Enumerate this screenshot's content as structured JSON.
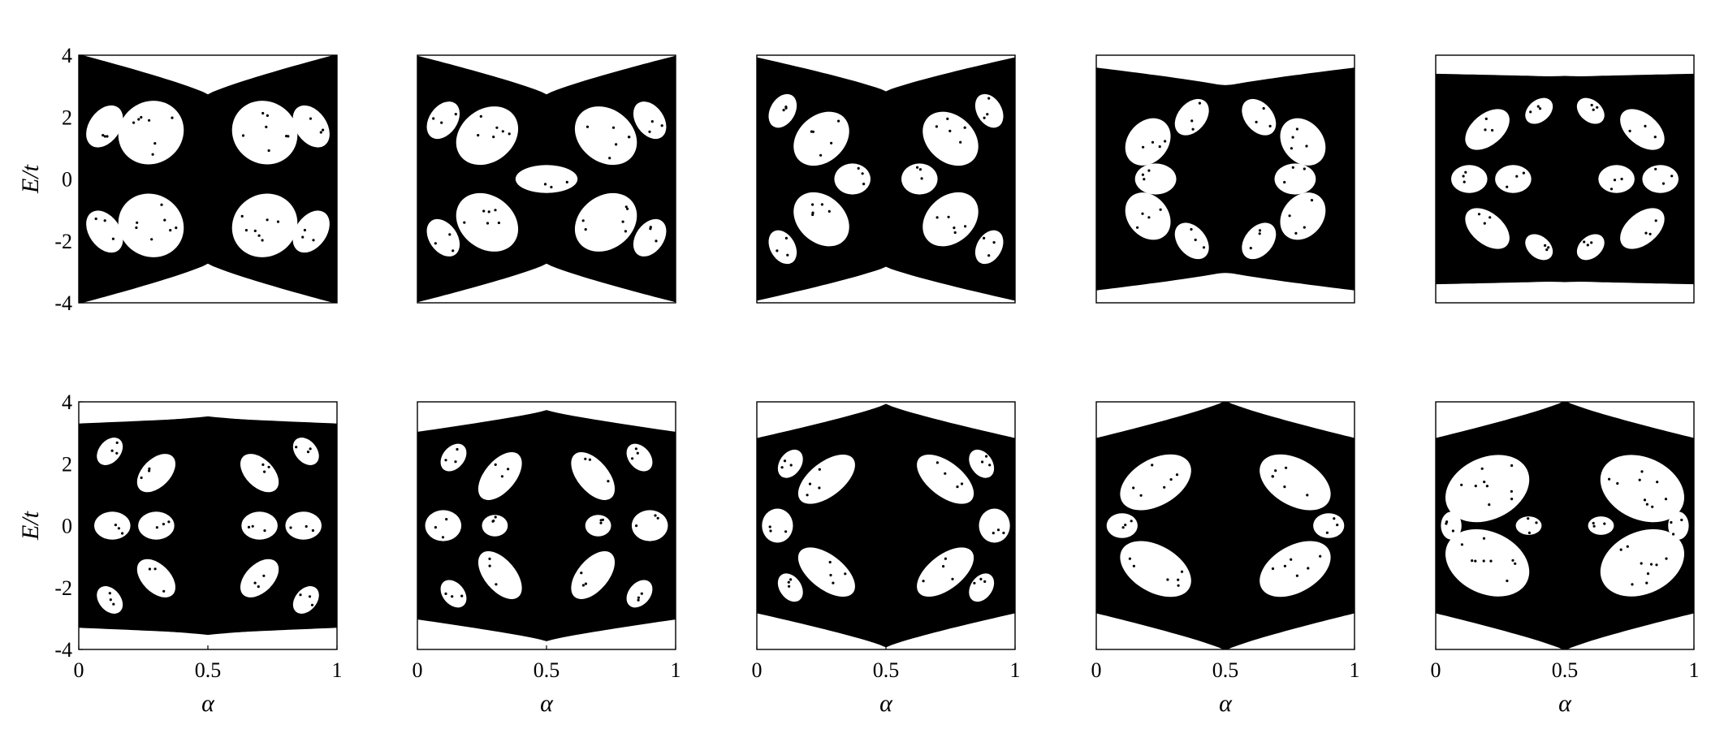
{
  "chart_data": [
    {
      "type": "scatter",
      "row": 0,
      "col": 0,
      "xlim": [
        0,
        1
      ],
      "ylim": [
        -4,
        4
      ],
      "xticks": [],
      "yticks": [
        "-4",
        "-2",
        "0",
        "2",
        "4"
      ],
      "xlabel": "",
      "ylabel": "E/t",
      "ylabel_main": "E",
      "ylabel_sep": "/",
      "ylabel_sub": "t",
      "band_top": [
        4.0,
        2.7,
        4.0
      ],
      "band_bottom": [
        -4.0,
        -2.7,
        -4.0
      ],
      "edge_max": [
        4.0,
        2.7,
        4.0
      ],
      "gaps": [
        {
          "x": 0.28,
          "y": 1.5,
          "w": 0.13,
          "h": 1.0,
          "r": -35
        },
        {
          "x": 0.72,
          "y": 1.5,
          "w": 0.13,
          "h": 1.0,
          "r": 35
        },
        {
          "x": 0.28,
          "y": -1.5,
          "w": 0.13,
          "h": 1.0,
          "r": 35
        },
        {
          "x": 0.72,
          "y": -1.5,
          "w": 0.13,
          "h": 1.0,
          "r": -35
        },
        {
          "x": 0.1,
          "y": 1.7,
          "w": 0.09,
          "h": 0.5,
          "r": -55
        },
        {
          "x": 0.9,
          "y": 1.7,
          "w": 0.09,
          "h": 0.5,
          "r": 55
        },
        {
          "x": 0.1,
          "y": -1.7,
          "w": 0.09,
          "h": 0.5,
          "r": 55
        },
        {
          "x": 0.9,
          "y": -1.7,
          "w": 0.09,
          "h": 0.5,
          "r": -55
        }
      ]
    },
    {
      "type": "scatter",
      "row": 0,
      "col": 1,
      "xlim": [
        0,
        1
      ],
      "ylim": [
        -4,
        4
      ],
      "xticks": [],
      "yticks": [],
      "xlabel": "",
      "ylabel": "",
      "band_top": [
        3.95,
        2.7,
        3.95
      ],
      "band_bottom": [
        -3.95,
        -2.7,
        -3.95
      ],
      "edge_max": [
        3.95,
        2.7,
        3.95
      ],
      "gaps": [
        {
          "x": 0.27,
          "y": 1.4,
          "w": 0.13,
          "h": 0.85,
          "r": -38
        },
        {
          "x": 0.73,
          "y": 1.4,
          "w": 0.13,
          "h": 0.85,
          "r": 38
        },
        {
          "x": 0.27,
          "y": -1.4,
          "w": 0.13,
          "h": 0.85,
          "r": 38
        },
        {
          "x": 0.73,
          "y": -1.4,
          "w": 0.13,
          "h": 0.85,
          "r": -38
        },
        {
          "x": 0.5,
          "y": 0.0,
          "w": 0.12,
          "h": 0.45,
          "r": 0
        },
        {
          "x": 0.1,
          "y": 1.9,
          "w": 0.08,
          "h": 0.45,
          "r": -55
        },
        {
          "x": 0.9,
          "y": 1.9,
          "w": 0.08,
          "h": 0.45,
          "r": 55
        },
        {
          "x": 0.1,
          "y": -1.9,
          "w": 0.08,
          "h": 0.45,
          "r": 55
        },
        {
          "x": 0.9,
          "y": -1.9,
          "w": 0.08,
          "h": 0.45,
          "r": -55
        }
      ]
    },
    {
      "type": "scatter",
      "row": 0,
      "col": 2,
      "xlim": [
        0,
        1
      ],
      "ylim": [
        -4,
        4
      ],
      "xticks": [],
      "yticks": [],
      "xlabel": "",
      "ylabel": "",
      "band_top": [
        3.9,
        2.8,
        3.9
      ],
      "band_bottom": [
        -3.9,
        -2.8,
        -3.9
      ],
      "edge_max": [
        3.9,
        2.8,
        3.9
      ],
      "gaps": [
        {
          "x": 0.25,
          "y": 1.3,
          "w": 0.12,
          "h": 0.75,
          "r": -42
        },
        {
          "x": 0.75,
          "y": 1.3,
          "w": 0.12,
          "h": 0.75,
          "r": 42
        },
        {
          "x": 0.25,
          "y": -1.3,
          "w": 0.12,
          "h": 0.75,
          "r": 42
        },
        {
          "x": 0.75,
          "y": -1.3,
          "w": 0.12,
          "h": 0.75,
          "r": -42
        },
        {
          "x": 0.37,
          "y": 0.0,
          "w": 0.07,
          "h": 0.5,
          "r": 0
        },
        {
          "x": 0.63,
          "y": 0.0,
          "w": 0.07,
          "h": 0.5,
          "r": 0
        },
        {
          "x": 0.1,
          "y": 2.2,
          "w": 0.07,
          "h": 0.4,
          "r": -60
        },
        {
          "x": 0.9,
          "y": 2.2,
          "w": 0.07,
          "h": 0.4,
          "r": 60
        },
        {
          "x": 0.1,
          "y": -2.2,
          "w": 0.07,
          "h": 0.4,
          "r": 60
        },
        {
          "x": 0.9,
          "y": -2.2,
          "w": 0.07,
          "h": 0.4,
          "r": -60
        }
      ]
    },
    {
      "type": "scatter",
      "row": 0,
      "col": 3,
      "xlim": [
        0,
        1
      ],
      "ylim": [
        -4,
        4
      ],
      "xticks": [],
      "yticks": [],
      "xlabel": "",
      "ylabel": "",
      "band_top": [
        3.6,
        3.0,
        3.6
      ],
      "band_bottom": [
        -3.6,
        -3.0,
        -3.6
      ],
      "edge_max": [
        3.2,
        3.0,
        3.2
      ],
      "gaps": [
        {
          "x": 0.2,
          "y": 1.2,
          "w": 0.1,
          "h": 0.65,
          "r": -50
        },
        {
          "x": 0.8,
          "y": 1.2,
          "w": 0.1,
          "h": 0.65,
          "r": 50
        },
        {
          "x": 0.2,
          "y": -1.2,
          "w": 0.1,
          "h": 0.65,
          "r": 50
        },
        {
          "x": 0.8,
          "y": -1.2,
          "w": 0.1,
          "h": 0.65,
          "r": -50
        },
        {
          "x": 0.23,
          "y": 0.0,
          "w": 0.08,
          "h": 0.5,
          "r": 0
        },
        {
          "x": 0.77,
          "y": 0.0,
          "w": 0.08,
          "h": 0.5,
          "r": 0
        },
        {
          "x": 0.37,
          "y": 2.0,
          "w": 0.08,
          "h": 0.45,
          "r": -50
        },
        {
          "x": 0.63,
          "y": 2.0,
          "w": 0.08,
          "h": 0.45,
          "r": 50
        },
        {
          "x": 0.37,
          "y": -2.0,
          "w": 0.08,
          "h": 0.45,
          "r": 50
        },
        {
          "x": 0.63,
          "y": -2.0,
          "w": 0.08,
          "h": 0.45,
          "r": -50
        }
      ]
    },
    {
      "type": "scatter",
      "row": 0,
      "col": 4,
      "xlim": [
        0,
        1
      ],
      "ylim": [
        -4,
        4
      ],
      "xticks": [],
      "yticks": [],
      "xlabel": "",
      "ylabel": "",
      "band_top": [
        3.4,
        3.3,
        3.4
      ],
      "band_bottom": [
        -3.4,
        -3.3,
        -3.4
      ],
      "edge_max": [
        3.2,
        3.3,
        3.2
      ],
      "gaps": [
        {
          "x": 0.13,
          "y": 0.0,
          "w": 0.07,
          "h": 0.45,
          "r": 0
        },
        {
          "x": 0.3,
          "y": 0.0,
          "w": 0.07,
          "h": 0.45,
          "r": 0
        },
        {
          "x": 0.7,
          "y": 0.0,
          "w": 0.07,
          "h": 0.45,
          "r": 0
        },
        {
          "x": 0.87,
          "y": 0.0,
          "w": 0.07,
          "h": 0.45,
          "r": 0
        },
        {
          "x": 0.2,
          "y": 1.6,
          "w": 0.1,
          "h": 0.5,
          "r": -40
        },
        {
          "x": 0.8,
          "y": 1.6,
          "w": 0.1,
          "h": 0.5,
          "r": 40
        },
        {
          "x": 0.2,
          "y": -1.6,
          "w": 0.1,
          "h": 0.5,
          "r": 40
        },
        {
          "x": 0.8,
          "y": -1.6,
          "w": 0.1,
          "h": 0.5,
          "r": -40
        },
        {
          "x": 0.4,
          "y": 2.2,
          "w": 0.06,
          "h": 0.35,
          "r": -40
        },
        {
          "x": 0.6,
          "y": 2.2,
          "w": 0.06,
          "h": 0.35,
          "r": 40
        },
        {
          "x": 0.4,
          "y": -2.2,
          "w": 0.06,
          "h": 0.35,
          "r": 40
        },
        {
          "x": 0.6,
          "y": -2.2,
          "w": 0.06,
          "h": 0.35,
          "r": -40
        }
      ]
    },
    {
      "type": "scatter",
      "row": 1,
      "col": 0,
      "xlim": [
        0,
        1
      ],
      "ylim": [
        -4,
        4
      ],
      "xticks": [
        "0",
        "0.5",
        "1"
      ],
      "yticks": [
        "-4",
        "-2",
        "0",
        "2",
        "4"
      ],
      "xlabel": "α",
      "ylabel": "E/t",
      "ylabel_main": "E",
      "ylabel_sep": "/",
      "ylabel_sub": "t",
      "band_top": [
        3.3,
        3.5,
        3.3
      ],
      "band_bottom": [
        -3.3,
        -3.5,
        -3.3
      ],
      "edge_max": [
        3.2,
        3.5,
        3.2
      ],
      "gaps": [
        {
          "x": 0.13,
          "y": 0.0,
          "w": 0.07,
          "h": 0.45,
          "r": 0
        },
        {
          "x": 0.3,
          "y": 0.0,
          "w": 0.07,
          "h": 0.45,
          "r": 0
        },
        {
          "x": 0.7,
          "y": 0.0,
          "w": 0.07,
          "h": 0.45,
          "r": 0
        },
        {
          "x": 0.87,
          "y": 0.0,
          "w": 0.07,
          "h": 0.45,
          "r": 0
        },
        {
          "x": 0.3,
          "y": 1.7,
          "w": 0.09,
          "h": 0.45,
          "r": -45
        },
        {
          "x": 0.7,
          "y": 1.7,
          "w": 0.09,
          "h": 0.45,
          "r": 45
        },
        {
          "x": 0.3,
          "y": -1.7,
          "w": 0.09,
          "h": 0.45,
          "r": 45
        },
        {
          "x": 0.7,
          "y": -1.7,
          "w": 0.09,
          "h": 0.45,
          "r": -45
        },
        {
          "x": 0.12,
          "y": 2.4,
          "w": 0.06,
          "h": 0.35,
          "r": -50
        },
        {
          "x": 0.88,
          "y": 2.4,
          "w": 0.06,
          "h": 0.35,
          "r": 50
        },
        {
          "x": 0.12,
          "y": -2.4,
          "w": 0.06,
          "h": 0.35,
          "r": 50
        },
        {
          "x": 0.88,
          "y": -2.4,
          "w": 0.06,
          "h": 0.35,
          "r": -50
        }
      ]
    },
    {
      "type": "scatter",
      "row": 1,
      "col": 1,
      "xlim": [
        0,
        1
      ],
      "ylim": [
        -4,
        4
      ],
      "xticks": [
        "0",
        "0.5",
        "1"
      ],
      "yticks": [],
      "xlabel": "α",
      "ylabel": "",
      "band_top": [
        3.0,
        3.7,
        3.0
      ],
      "band_bottom": [
        -3.0,
        -3.7,
        -3.0
      ],
      "edge_max": [
        3.0,
        3.7,
        3.0
      ],
      "gaps": [
        {
          "x": 0.1,
          "y": 0.0,
          "w": 0.07,
          "h": 0.5,
          "r": 0
        },
        {
          "x": 0.9,
          "y": 0.0,
          "w": 0.07,
          "h": 0.5,
          "r": 0
        },
        {
          "x": 0.3,
          "y": 0.0,
          "w": 0.05,
          "h": 0.35,
          "r": 0
        },
        {
          "x": 0.7,
          "y": 0.0,
          "w": 0.05,
          "h": 0.35,
          "r": 0
        },
        {
          "x": 0.32,
          "y": 1.6,
          "w": 0.11,
          "h": 0.5,
          "r": -50
        },
        {
          "x": 0.68,
          "y": 1.6,
          "w": 0.11,
          "h": 0.5,
          "r": 50
        },
        {
          "x": 0.32,
          "y": -1.6,
          "w": 0.11,
          "h": 0.5,
          "r": 50
        },
        {
          "x": 0.68,
          "y": -1.6,
          "w": 0.11,
          "h": 0.5,
          "r": -50
        },
        {
          "x": 0.14,
          "y": 2.2,
          "w": 0.06,
          "h": 0.35,
          "r": -50
        },
        {
          "x": 0.86,
          "y": 2.2,
          "w": 0.06,
          "h": 0.35,
          "r": 50
        },
        {
          "x": 0.14,
          "y": -2.2,
          "w": 0.06,
          "h": 0.35,
          "r": 50
        },
        {
          "x": 0.86,
          "y": -2.2,
          "w": 0.06,
          "h": 0.35,
          "r": -50
        }
      ]
    },
    {
      "type": "scatter",
      "row": 1,
      "col": 2,
      "xlim": [
        0,
        1
      ],
      "ylim": [
        -4,
        4
      ],
      "xticks": [
        "0",
        "0.5",
        "1"
      ],
      "yticks": [],
      "xlabel": "α",
      "ylabel": "",
      "band_top": [
        2.8,
        3.9,
        2.8
      ],
      "band_bottom": [
        -2.8,
        -3.9,
        -2.8
      ],
      "edge_max": [
        2.8,
        3.9,
        2.8
      ],
      "gaps": [
        {
          "x": 0.08,
          "y": 0.0,
          "w": 0.06,
          "h": 0.55,
          "r": 0
        },
        {
          "x": 0.92,
          "y": 0.0,
          "w": 0.06,
          "h": 0.55,
          "r": 0
        },
        {
          "x": 0.27,
          "y": 1.5,
          "w": 0.13,
          "h": 0.55,
          "r": -38
        },
        {
          "x": 0.73,
          "y": 1.5,
          "w": 0.13,
          "h": 0.55,
          "r": 38
        },
        {
          "x": 0.27,
          "y": -1.5,
          "w": 0.13,
          "h": 0.55,
          "r": 38
        },
        {
          "x": 0.73,
          "y": -1.5,
          "w": 0.13,
          "h": 0.55,
          "r": -38
        },
        {
          "x": 0.13,
          "y": 2.0,
          "w": 0.06,
          "h": 0.35,
          "r": -55
        },
        {
          "x": 0.87,
          "y": 2.0,
          "w": 0.06,
          "h": 0.35,
          "r": 55
        },
        {
          "x": 0.13,
          "y": -2.0,
          "w": 0.06,
          "h": 0.35,
          "r": 55
        },
        {
          "x": 0.87,
          "y": -2.0,
          "w": 0.06,
          "h": 0.35,
          "r": -55
        }
      ]
    },
    {
      "type": "scatter",
      "row": 1,
      "col": 3,
      "xlim": [
        0,
        1
      ],
      "ylim": [
        -4,
        4
      ],
      "xticks": [
        "0",
        "0.5",
        "1"
      ],
      "yticks": [],
      "xlabel": "α",
      "ylabel": "",
      "band_top": [
        2.8,
        4.0,
        2.8
      ],
      "band_bottom": [
        -2.8,
        -4.0,
        -2.8
      ],
      "edge_max": [
        2.8,
        4.0,
        2.8
      ],
      "gaps": [
        {
          "x": 0.23,
          "y": 1.4,
          "w": 0.15,
          "h": 0.75,
          "r": -30
        },
        {
          "x": 0.77,
          "y": 1.4,
          "w": 0.15,
          "h": 0.75,
          "r": 30
        },
        {
          "x": 0.23,
          "y": -1.4,
          "w": 0.15,
          "h": 0.75,
          "r": 30
        },
        {
          "x": 0.77,
          "y": -1.4,
          "w": 0.15,
          "h": 0.75,
          "r": -30
        },
        {
          "x": 0.1,
          "y": 0.0,
          "w": 0.06,
          "h": 0.4,
          "r": 0
        },
        {
          "x": 0.9,
          "y": 0.0,
          "w": 0.06,
          "h": 0.4,
          "r": 0
        }
      ]
    },
    {
      "type": "scatter",
      "row": 1,
      "col": 4,
      "xlim": [
        0,
        1
      ],
      "ylim": [
        -4,
        4
      ],
      "xticks": [
        "0",
        "0.5",
        "1"
      ],
      "yticks": [],
      "xlabel": "α",
      "ylabel": "",
      "band_top": [
        2.8,
        4.0,
        2.8
      ],
      "band_bottom": [
        -2.8,
        -4.0,
        -2.8
      ],
      "edge_max": [
        2.8,
        4.0,
        2.8
      ],
      "gaps": [
        {
          "x": 0.2,
          "y": 1.2,
          "w": 0.17,
          "h": 1.0,
          "r": -25
        },
        {
          "x": 0.8,
          "y": 1.2,
          "w": 0.17,
          "h": 1.0,
          "r": 25
        },
        {
          "x": 0.2,
          "y": -1.2,
          "w": 0.17,
          "h": 1.0,
          "r": 25
        },
        {
          "x": 0.8,
          "y": -1.2,
          "w": 0.17,
          "h": 1.0,
          "r": -25
        },
        {
          "x": 0.06,
          "y": 0.0,
          "w": 0.04,
          "h": 0.45,
          "r": 0
        },
        {
          "x": 0.94,
          "y": 0.0,
          "w": 0.04,
          "h": 0.45,
          "r": 0
        },
        {
          "x": 0.36,
          "y": 0.0,
          "w": 0.05,
          "h": 0.3,
          "r": 0
        },
        {
          "x": 0.64,
          "y": 0.0,
          "w": 0.05,
          "h": 0.3,
          "r": 0
        }
      ]
    }
  ]
}
